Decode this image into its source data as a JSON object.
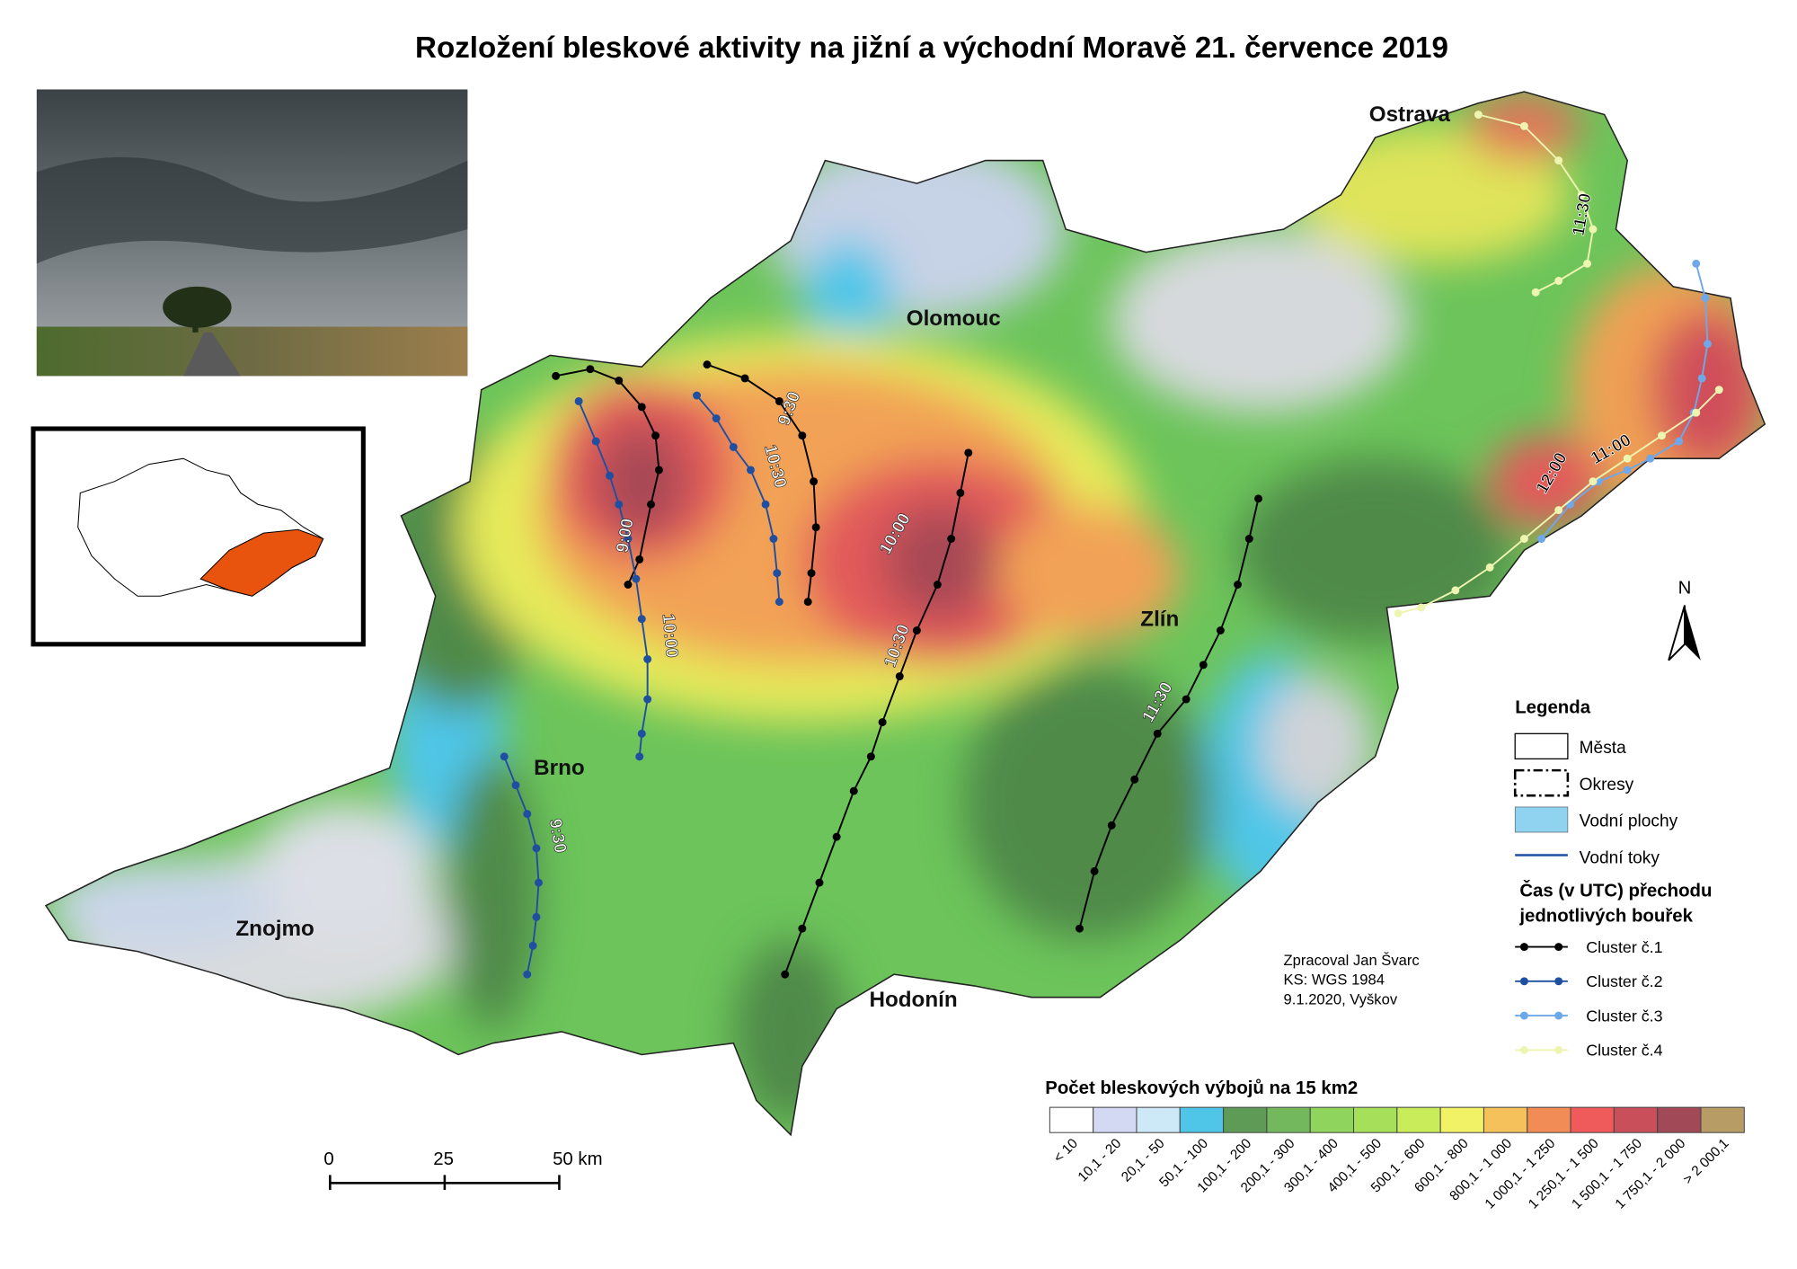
{
  "title": "Rozložení bleskové aktivity na jižní a východní Moravě 21. července 2019",
  "map": {
    "cities": [
      "Ostrava",
      "Olomouc",
      "Brno",
      "Zlín",
      "Znojmo",
      "Hodonín"
    ],
    "time_labels": [
      "9:30",
      "10:30",
      "9:00",
      "10:00",
      "10:00",
      "10:30",
      "11:30",
      "9:30",
      "11:30",
      "12:00",
      "11:00"
    ]
  },
  "legend": {
    "title": "Legenda",
    "items": [
      "Města",
      "Okresy",
      "Vodní plochy",
      "Vodní toky"
    ],
    "time_heading": [
      "Čas (v UTC) přechodu",
      "jednotlivých bouřek"
    ],
    "clusters": [
      {
        "name": "Cluster č.1",
        "color": "#000000"
      },
      {
        "name": "Cluster č.2",
        "color": "#1f4fa0"
      },
      {
        "name": "Cluster č.3",
        "color": "#6fa8e8"
      },
      {
        "name": "Cluster č.4",
        "color": "#eef5b0"
      }
    ]
  },
  "credits": [
    "Zpracoval Jan Švarc",
    "KS: WGS 1984",
    "9.1.2020, Vyškov"
  ],
  "colorbar": {
    "title": "Počet bleskových výbojů na 15 km2",
    "classes": [
      {
        "label": "< 10",
        "color": "#ffffff"
      },
      {
        "label": "10,1 - 20",
        "color": "#d4d9f3"
      },
      {
        "label": "20,1 - 50",
        "color": "#cde8f7"
      },
      {
        "label": "50,1 - 100",
        "color": "#4fc6e8"
      },
      {
        "label": "100,1 - 200",
        "color": "#5e9b57"
      },
      {
        "label": "200,1 - 300",
        "color": "#74b85e"
      },
      {
        "label": "300,1 - 400",
        "color": "#8fd45c"
      },
      {
        "label": "400,1 - 500",
        "color": "#a6e05a"
      },
      {
        "label": "500,1 - 600",
        "color": "#c8ec5a"
      },
      {
        "label": "600,1 - 800",
        "color": "#f2f266"
      },
      {
        "label": "800,1 - 1 000",
        "color": "#f5c15b"
      },
      {
        "label": "1 000,1 - 1 250",
        "color": "#f28c57"
      },
      {
        "label": "1 250,1 - 1 500",
        "color": "#ef5a5a"
      },
      {
        "label": "1 500,1 - 1 750",
        "color": "#c94f5a"
      },
      {
        "label": "1 750,1 - 2 000",
        "color": "#a24957"
      },
      {
        "label": "> 2 000,1",
        "color": "#b89c66"
      }
    ]
  },
  "scale_bar": {
    "labels": [
      "0",
      "25",
      "50 km"
    ]
  },
  "north_arrow": "N"
}
